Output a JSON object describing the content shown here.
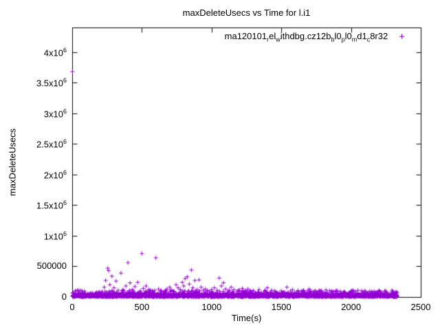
{
  "chart_data": {
    "type": "scatter",
    "title": "maxDeleteUsecs vs Time for l.i1",
    "xlabel": "Time(s)",
    "ylabel": "maxDeleteUsecs",
    "xlim": [
      0,
      2500
    ],
    "ylim": [
      0,
      4400000
    ],
    "grid": false,
    "legend_position": "top-right-inside",
    "marker_color": "#9400d3",
    "x_ticks": [
      {
        "v": 0,
        "label": "0"
      },
      {
        "v": 500,
        "label": "500"
      },
      {
        "v": 1000,
        "label": "1000"
      },
      {
        "v": 1500,
        "label": "1500"
      },
      {
        "v": 2000,
        "label": "2000"
      },
      {
        "v": 2500,
        "label": "2500"
      }
    ],
    "y_ticks": [
      {
        "v": 0,
        "label": "0"
      },
      {
        "v": 500000,
        "label": "500000"
      },
      {
        "v": 1000000,
        "label": "1x10^6"
      },
      {
        "v": 1500000,
        "label": "1.5x10^6"
      },
      {
        "v": 2000000,
        "label": "2x10^6"
      },
      {
        "v": 2500000,
        "label": "2.5x10^6"
      },
      {
        "v": 3000000,
        "label": "3x10^6"
      },
      {
        "v": 3500000,
        "label": "3.5x10^6"
      },
      {
        "v": 4000000,
        "label": "4x10^6"
      }
    ],
    "series": [
      {
        "name": "ma120101_rel_withdbg.cz12b_bl0_pl0_md1_c8r32",
        "color": "#9400d3",
        "marker": "plus",
        "outliers": [
          [
            2,
            3680000
          ],
          [
            215,
            90000
          ],
          [
            230,
            160000
          ],
          [
            240,
            270000
          ],
          [
            255,
            470000
          ],
          [
            262,
            430000
          ],
          [
            270,
            200000
          ],
          [
            285,
            340000
          ],
          [
            300,
            150000
          ],
          [
            315,
            260000
          ],
          [
            330,
            110000
          ],
          [
            350,
            390000
          ],
          [
            365,
            120000
          ],
          [
            385,
            180000
          ],
          [
            400,
            560000
          ],
          [
            415,
            230000
          ],
          [
            430,
            120000
          ],
          [
            450,
            170000
          ],
          [
            470,
            240000
          ],
          [
            490,
            100000
          ],
          [
            500,
            710000
          ],
          [
            510,
            140000
          ],
          [
            530,
            180000
          ],
          [
            550,
            120000
          ],
          [
            575,
            100000
          ],
          [
            600,
            640000
          ],
          [
            620,
            130000
          ],
          [
            640,
            100000
          ],
          [
            660,
            90000
          ],
          [
            680,
            130000
          ],
          [
            700,
            160000
          ],
          [
            715,
            110000
          ],
          [
            730,
            90000
          ],
          [
            745,
            200000
          ],
          [
            760,
            150000
          ],
          [
            775,
            120000
          ],
          [
            790,
            240000
          ],
          [
            800,
            180000
          ],
          [
            810,
            300000
          ],
          [
            825,
            330000
          ],
          [
            840,
            210000
          ],
          [
            855,
            440000
          ],
          [
            865,
            150000
          ],
          [
            880,
            270000
          ],
          [
            895,
            120000
          ],
          [
            910,
            280000
          ],
          [
            925,
            160000
          ],
          [
            940,
            110000
          ],
          [
            955,
            130000
          ],
          [
            970,
            100000
          ],
          [
            985,
            90000
          ],
          [
            1000,
            120000
          ],
          [
            1020,
            150000
          ],
          [
            1040,
            110000
          ],
          [
            1055,
            310000
          ],
          [
            1070,
            180000
          ],
          [
            1085,
            230000
          ],
          [
            1100,
            130000
          ],
          [
            1120,
            100000
          ],
          [
            1140,
            160000
          ],
          [
            1160,
            120000
          ],
          [
            1180,
            90000
          ],
          [
            1200,
            110000
          ],
          [
            1220,
            140000
          ],
          [
            1240,
            100000
          ],
          [
            1260,
            130000
          ],
          [
            1280,
            90000
          ],
          [
            1300,
            105000
          ],
          [
            1340,
            120000
          ],
          [
            1380,
            95000
          ],
          [
            1400,
            150000
          ],
          [
            1430,
            110000
          ],
          [
            1460,
            90000
          ],
          [
            1500,
            100000
          ],
          [
            1540,
            160000
          ],
          [
            1580,
            120000
          ],
          [
            1620,
            95000
          ],
          [
            1660,
            110000
          ],
          [
            1700,
            130000
          ],
          [
            1740,
            100000
          ],
          [
            1780,
            90000
          ],
          [
            1820,
            115000
          ],
          [
            1860,
            95000
          ],
          [
            1900,
            105000
          ],
          [
            1950,
            90000
          ],
          [
            2000,
            95000
          ],
          [
            2050,
            110000
          ],
          [
            2100,
            100000
          ],
          [
            2150,
            90000
          ],
          [
            2200,
            95000
          ],
          [
            2250,
            85000
          ],
          [
            2300,
            90000
          ],
          [
            2330,
            80000
          ]
        ],
        "baseline_band": {
          "x_range": [
            0,
            2330
          ],
          "y_range": [
            2000,
            110000
          ],
          "count": 2600,
          "seed": 42
        }
      }
    ]
  }
}
